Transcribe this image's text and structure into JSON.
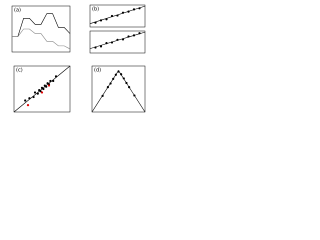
{
  "chart_data": [
    {
      "type": "scatter",
      "title": "(a)",
      "xlim": [
        0,
        10
      ],
      "ylim": [
        -1,
        2
      ],
      "series": [
        {
          "color": "#000000",
          "mode": "line",
          "x": [
            0,
            1,
            2,
            3,
            4,
            5,
            6,
            7,
            8,
            9,
            10
          ],
          "y": [
            0,
            0,
            1.2,
            1.2,
            0.8,
            0.8,
            1.5,
            1.5,
            0.6,
            0.6,
            0.2
          ]
        },
        {
          "color": "#888888",
          "mode": "line",
          "x": [
            0,
            1,
            2,
            3,
            4,
            5,
            6,
            7,
            8,
            9,
            10
          ],
          "y": [
            0,
            0,
            0.5,
            0.5,
            0.2,
            0.2,
            -0.3,
            -0.3,
            -0.6,
            -0.6,
            -0.8
          ]
        }
      ]
    },
    {
      "type": "scatter",
      "title": "(b)",
      "xlim": [
        0,
        10
      ],
      "ylim": [
        0,
        10
      ],
      "series": [
        {
          "color": "#000000",
          "mode": "markers",
          "x": [
            1,
            2,
            3,
            4,
            5,
            6,
            7,
            8,
            9
          ],
          "y": [
            2,
            3,
            3.5,
            5,
            5.2,
            6.5,
            7,
            8,
            8.5
          ]
        },
        {
          "color": "#000000",
          "mode": "line",
          "x": [
            0,
            10
          ],
          "y": [
            1.5,
            9.5
          ]
        }
      ]
    },
    {
      "type": "scatter",
      "xlim": [
        0,
        10
      ],
      "ylim": [
        0,
        10
      ],
      "series": [
        {
          "color": "#000000",
          "mode": "markers",
          "x": [
            1,
            2,
            3,
            4,
            5,
            6,
            7,
            8,
            9
          ],
          "y": [
            2.5,
            3,
            4.5,
            4.8,
            6,
            6.2,
            7.5,
            8,
            9
          ]
        },
        {
          "color": "#000000",
          "mode": "line",
          "x": [
            0,
            10
          ],
          "y": [
            2,
            9.5
          ]
        }
      ]
    },
    {
      "type": "scatter",
      "title": "(c)",
      "xlim": [
        -3,
        1
      ],
      "ylim": [
        -3,
        1
      ],
      "series": [
        {
          "color": "#000000",
          "mode": "line",
          "x": [
            -3,
            1
          ],
          "y": [
            -3,
            1
          ]
        },
        {
          "color": "#000000",
          "mode": "markers",
          "x": [
            -2.2,
            -1.9,
            -1.6,
            -1.5,
            -1.3,
            -1.2,
            -1.1,
            -1.0,
            -0.9,
            -0.8,
            -0.7,
            -0.6,
            -0.5,
            -0.4,
            -0.2,
            0.0
          ],
          "y": [
            -2.0,
            -1.8,
            -1.7,
            -1.3,
            -1.4,
            -1.1,
            -1.2,
            -0.9,
            -1.0,
            -0.7,
            -0.8,
            -0.5,
            -0.6,
            -0.3,
            -0.3,
            0.1
          ]
        },
        {
          "color": "#e00000",
          "mode": "markers",
          "x": [
            -2.0,
            -1.0,
            -0.5
          ],
          "y": [
            -2.4,
            -1.3,
            -0.7
          ]
        }
      ]
    },
    {
      "type": "scatter",
      "title": "(d)",
      "xlim": [
        0,
        10
      ],
      "ylim": [
        0,
        10
      ],
      "series": [
        {
          "color": "#000000",
          "mode": "line",
          "x": [
            0,
            5,
            10
          ],
          "y": [
            0,
            9,
            0
          ]
        },
        {
          "color": "#000000",
          "mode": "markers",
          "x": [
            2,
            3,
            3.5,
            4,
            4.5,
            5,
            5.5,
            6,
            6.5,
            7,
            8
          ],
          "y": [
            3.5,
            5.4,
            6.2,
            7.2,
            8.1,
            8.8,
            8.2,
            7.3,
            6.3,
            5.4,
            3.6
          ]
        }
      ]
    }
  ]
}
